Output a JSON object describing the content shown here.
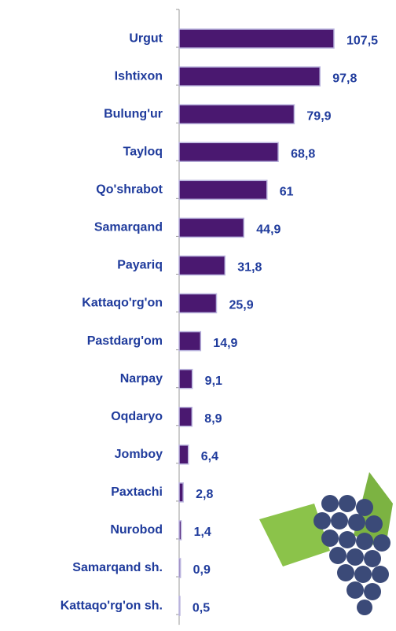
{
  "chart_data": {
    "type": "bar",
    "orientation": "horizontal",
    "categories": [
      "Urgut",
      "Ishtixon",
      "Bulung'ur",
      "Tayloq",
      "Qo'shrabot",
      "Samarqand",
      "Payariq",
      "Kattaqo'rg'on",
      "Pastdarg'om",
      "Narpay",
      "Oqdaryo",
      "Jomboy",
      "Paxtachi",
      "Nurobod",
      "Samarqand sh.",
      "Kattaqo'rg'on sh."
    ],
    "values": [
      107.5,
      97.8,
      79.9,
      68.8,
      61,
      44.9,
      31.8,
      25.9,
      14.9,
      9.1,
      8.9,
      6.4,
      2.8,
      1.4,
      0.9,
      0.5
    ],
    "value_labels": [
      "107,5",
      "97,8",
      "79,9",
      "68,8",
      "61",
      "44,9",
      "31,8",
      "25,9",
      "14,9",
      "9,1",
      "8,9",
      "6,4",
      "2,8",
      "1,4",
      "0,9",
      "0,5"
    ],
    "color": "#4a1870"
  }
}
